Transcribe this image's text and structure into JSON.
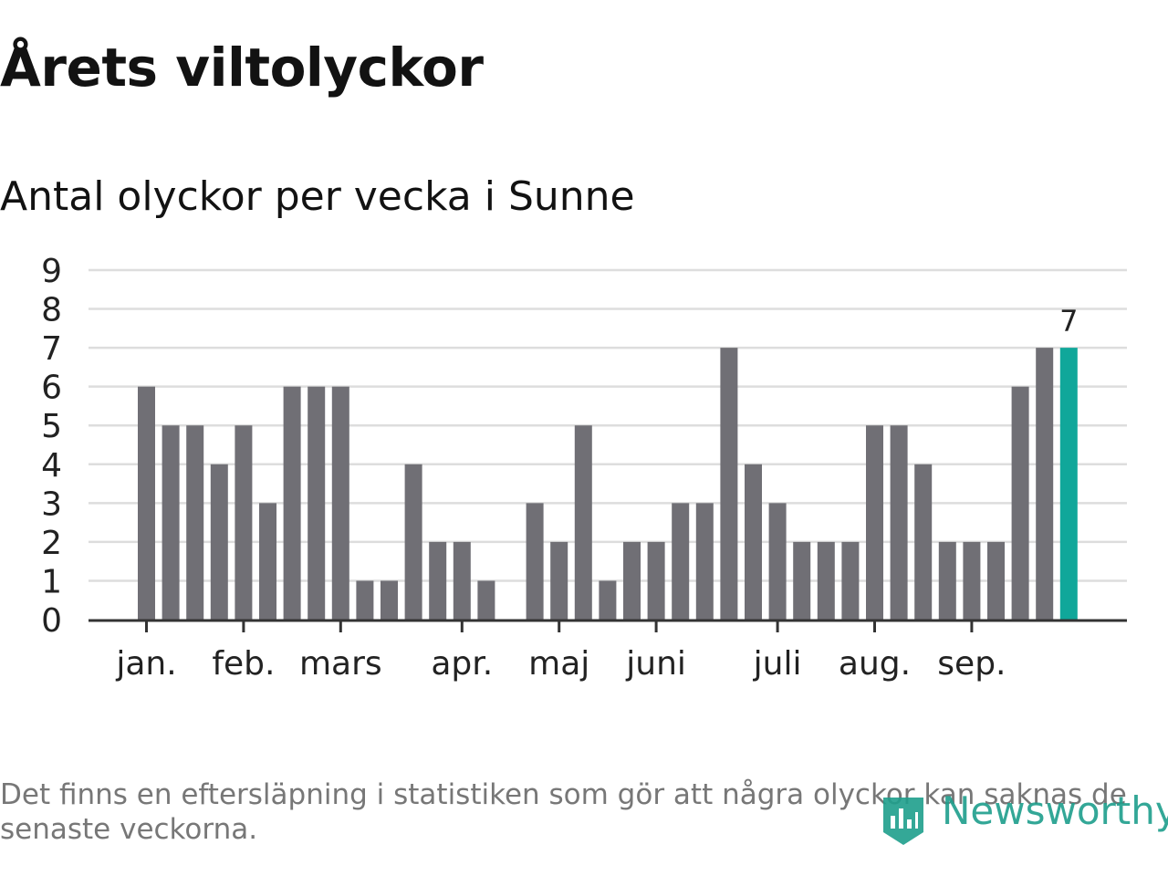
{
  "page": {
    "title": "Årets viltolyckor",
    "subtitle": "Antal olyckor per vecka i Sunne",
    "note": "Det finns en eftersläpning i statistiken som gör att några olyckor kan saknas de senaste veckorna.",
    "brand": "Newsworthy"
  },
  "colors": {
    "bar": "#706f75",
    "highlight": "#10a79a",
    "grid": "#dddddd",
    "axis": "#333333",
    "brand": "#1e9e8c"
  },
  "chart_data": {
    "type": "bar",
    "ylim": [
      0,
      9
    ],
    "yticks": [
      "0",
      "1",
      "2",
      "3",
      "4",
      "5",
      "6",
      "7",
      "8",
      "9"
    ],
    "grid": true,
    "values": [
      6,
      5,
      5,
      4,
      5,
      3,
      6,
      6,
      6,
      1,
      1,
      4,
      2,
      2,
      1,
      0,
      3,
      2,
      5,
      1,
      2,
      2,
      3,
      3,
      7,
      4,
      3,
      2,
      2,
      2,
      5,
      5,
      4,
      2,
      2,
      2,
      6,
      7,
      7
    ],
    "highlight_index": 38,
    "highlight_label": "7",
    "month_labels": [
      {
        "label": "jan.",
        "week": 0
      },
      {
        "label": "feb.",
        "week": 4
      },
      {
        "label": "mars",
        "week": 8
      },
      {
        "label": "apr.",
        "week": 13
      },
      {
        "label": "maj",
        "week": 17
      },
      {
        "label": "juni",
        "week": 21
      },
      {
        "label": "juli",
        "week": 26
      },
      {
        "label": "aug.",
        "week": 30
      },
      {
        "label": "sep.",
        "week": 34
      }
    ]
  }
}
